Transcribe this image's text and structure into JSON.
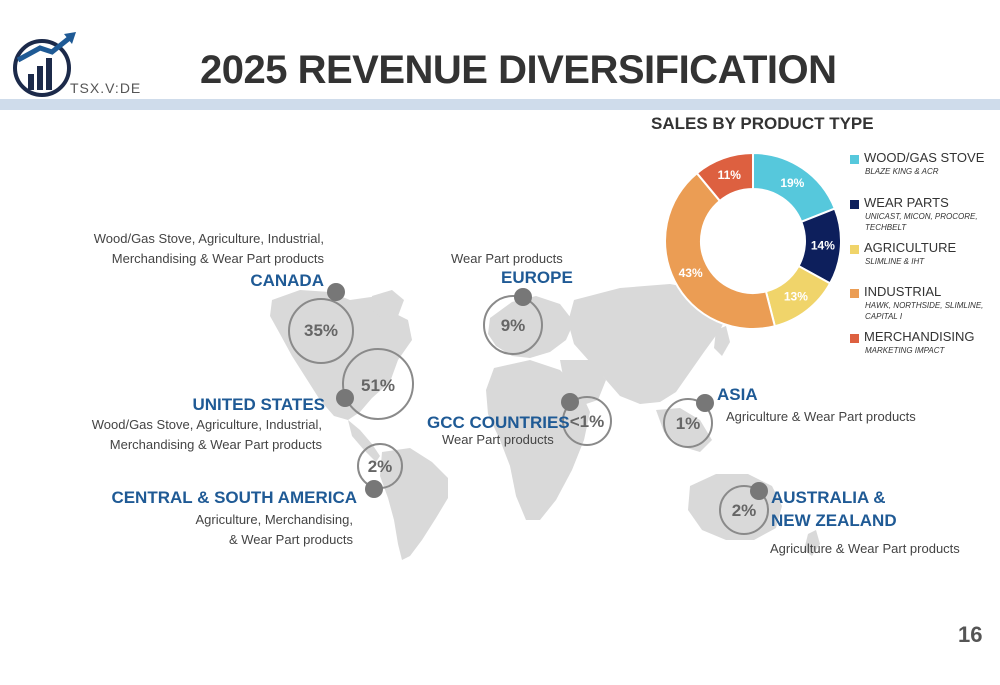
{
  "header": {
    "ticker": "TSX.V:DE",
    "title": "2025 REVENUE DIVERSIFICATION"
  },
  "regions": {
    "canada": {
      "name": "CANADA",
      "pct": "35%",
      "desc1": "Wood/Gas Stove, Agriculture, Industrial,",
      "desc2": "Merchandising & Wear Part products"
    },
    "united_states": {
      "name": "UNITED STATES",
      "pct": "51%",
      "desc1": "Wood/Gas Stove, Agriculture, Industrial,",
      "desc2": "Merchandising & Wear Part products"
    },
    "central_south_america": {
      "name": "CENTRAL & SOUTH AMERICA",
      "pct": "2%",
      "desc1": "Agriculture, Merchandising,",
      "desc2": "& Wear Part products"
    },
    "europe": {
      "name": "EUROPE",
      "pct": "9%",
      "desc": "Wear Part products"
    },
    "gcc": {
      "name": "GCC COUNTRIES",
      "pct": "<1%",
      "desc": "Wear Part products"
    },
    "asia": {
      "name": "ASIA",
      "pct": "1%",
      "desc": "Agriculture & Wear Part products"
    },
    "australia_nz": {
      "name1": "AUSTRALIA &",
      "name2": "NEW ZEALAND",
      "pct": "2%",
      "desc": "Agriculture & Wear Part products"
    }
  },
  "chart_data": {
    "type": "pie",
    "title": "SALES BY PRODUCT TYPE",
    "categories": [
      "WOOD/GAS STOVE",
      "WEAR PARTS",
      "AGRICULTURE",
      "INDUSTRIAL",
      "MERCHANDISING"
    ],
    "values": [
      19,
      14,
      13,
      43,
      11
    ],
    "labels": [
      "19%",
      "14%",
      "13%",
      "43%",
      "11%"
    ],
    "colors": [
      "#56c8dc",
      "#0d1f5c",
      "#f0d46a",
      "#eb9d54",
      "#dd6040"
    ],
    "subtitles": [
      "BLAZE KING & ACR",
      "UNICAST, MICON, PROCORE, TECHBELT",
      "SLIMLINE & IHT",
      "HAWK, NORTHSIDE, SLIMLINE, CAPITAL I",
      "MARKETING IMPACT"
    ],
    "donut": true,
    "legend": "right"
  },
  "legend": {
    "items": [
      {
        "name": "WOOD/GAS STOVE",
        "sub1": "BLAZE KING & ACR",
        "sub2": ""
      },
      {
        "name": "WEAR PARTS",
        "sub1": "UNICAST, MICON, PROCORE,",
        "sub2": "TECHBELT"
      },
      {
        "name": "AGRICULTURE",
        "sub1": "SLIMLINE & IHT",
        "sub2": ""
      },
      {
        "name": "INDUSTRIAL",
        "sub1": "HAWK, NORTHSIDE, SLIMLINE,",
        "sub2": "CAPITAL I"
      },
      {
        "name": "MERCHANDISING",
        "sub1": "MARKETING IMPACT",
        "sub2": ""
      }
    ]
  },
  "page_number": "16"
}
